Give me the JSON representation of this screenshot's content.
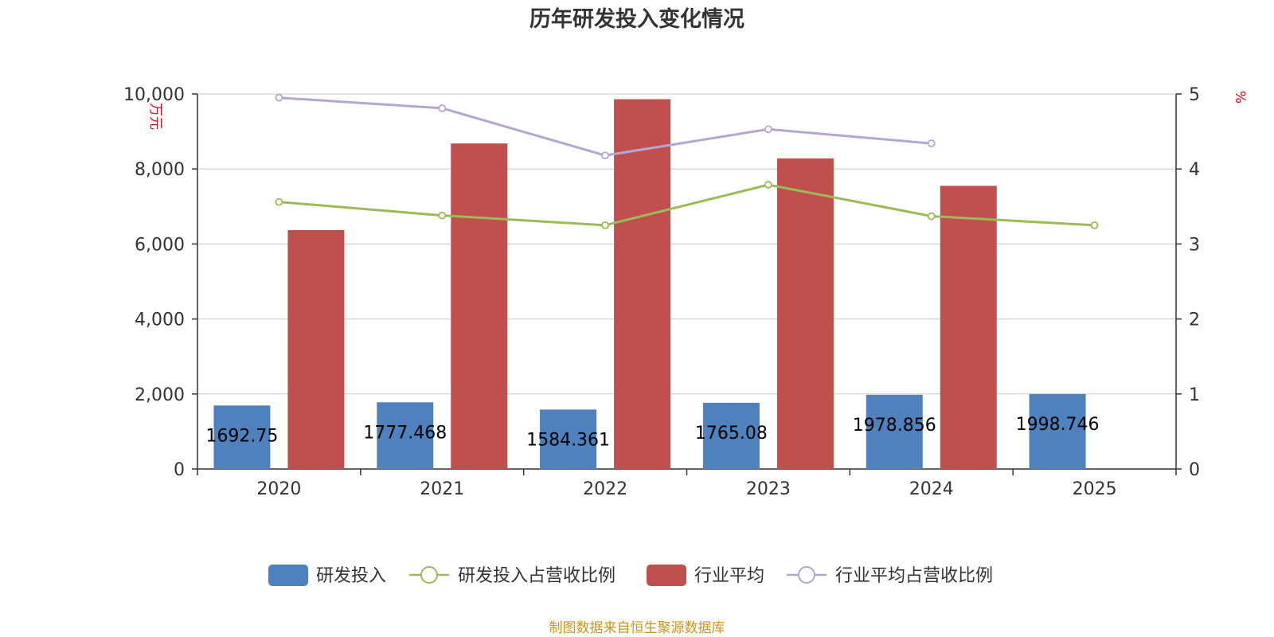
{
  "chart_data": {
    "type": "bar",
    "title": "历年研发投入变化情况",
    "categories": [
      "2020",
      "2021",
      "2022",
      "2023",
      "2024",
      "2025"
    ],
    "y_left": {
      "unit": "万元",
      "range": [
        0,
        10000
      ],
      "ticks": [
        "0",
        "2,000",
        "4,000",
        "6,000",
        "8,000",
        "10,000"
      ]
    },
    "y_right": {
      "unit": "%",
      "range": [
        0,
        5
      ],
      "ticks": [
        "0",
        "1",
        "2",
        "3",
        "4",
        "5"
      ]
    },
    "grid": true,
    "legend_position": "bottom-center",
    "series": [
      {
        "name": "研发投入",
        "kind": "bar",
        "axis": "left",
        "color": "#4f81bd",
        "values": [
          1692.75,
          1777.468,
          1584.361,
          1765.08,
          1978.856,
          1998.746
        ],
        "labels": [
          "1692.75",
          "1777.468",
          "1584.361",
          "1765.08",
          "1978.856",
          "1998.746"
        ]
      },
      {
        "name": "研发投入占营收比例",
        "kind": "line",
        "axis": "right",
        "color": "#9bbb59",
        "values": [
          3.56,
          3.38,
          3.25,
          3.79,
          3.37,
          3.25
        ]
      },
      {
        "name": "行业平均",
        "kind": "bar",
        "axis": "left",
        "color": "#c0504d",
        "values": [
          6370,
          8680,
          9860,
          8280,
          7550,
          null
        ]
      },
      {
        "name": "行业平均占营收比例",
        "kind": "line",
        "axis": "right",
        "color": "#b3a7cf",
        "values": [
          4.95,
          4.81,
          4.18,
          4.53,
          4.34,
          null
        ]
      }
    ],
    "source": "制图数据来自恒生聚源数据库"
  }
}
